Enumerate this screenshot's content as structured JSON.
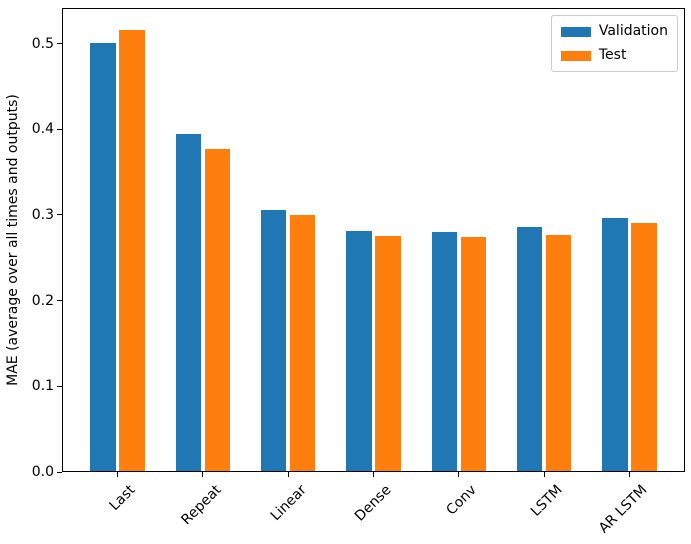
{
  "figure": {
    "background": "#ffffff",
    "axis_color": "#000000",
    "text_color": "#000000"
  },
  "chart_data": {
    "type": "bar",
    "title": "",
    "xlabel": "",
    "ylabel": "MAE (average over all times and outputs)",
    "categories": [
      "Last",
      "Repeat",
      "Linear",
      "Dense",
      "Conv",
      "LSTM",
      "AR LSTM"
    ],
    "series": [
      {
        "name": "Validation",
        "color": "#1f77b4",
        "values": [
          0.501,
          0.395,
          0.306,
          0.281,
          0.28,
          0.286,
          0.297
        ]
      },
      {
        "name": "Test",
        "color": "#ff7f0e",
        "values": [
          0.516,
          0.377,
          0.3,
          0.276,
          0.274,
          0.277,
          0.291
        ]
      }
    ],
    "ylim": [
      0,
      0.5415
    ],
    "yticks": [
      0.0,
      0.1,
      0.2,
      0.3,
      0.4,
      0.5
    ],
    "ytick_labels": [
      "0.0",
      "0.1",
      "0.2",
      "0.3",
      "0.4",
      "0.5"
    ],
    "xtick_rotation_deg": 45,
    "grid": false,
    "bar_width": 0.3,
    "bar_group_offset": 0.17,
    "legend": {
      "position": "upper right",
      "entries": [
        "Validation",
        "Test"
      ]
    }
  }
}
